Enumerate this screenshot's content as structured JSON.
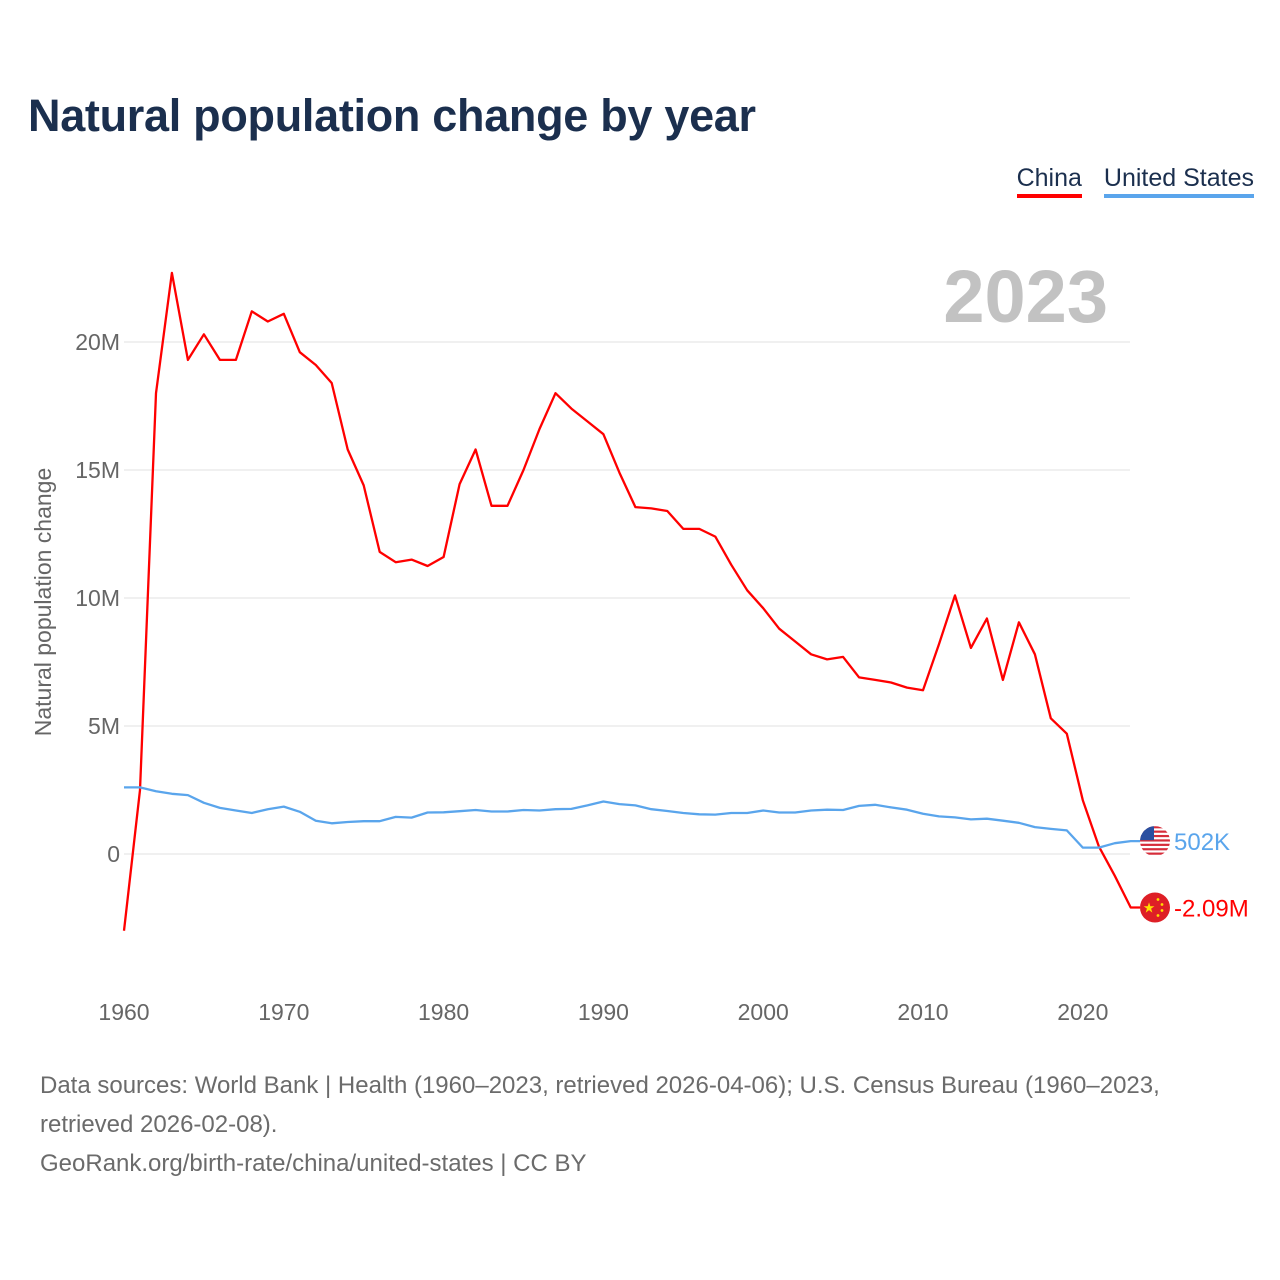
{
  "title": "Natural population change by year",
  "legend": [
    {
      "label": "China",
      "color": "#ff0000"
    },
    {
      "label": "United States",
      "color": "#5aa5ec"
    }
  ],
  "footer": {
    "sources": "Data sources: World Bank | Health (1960–2023, retrieved 2026-04-06); U.S. Census Bureau (1960–2023, retrieved 2026-02-08).",
    "link": "GeoRank.org/birth-rate/china/united-states | CC BY"
  },
  "chart_data": {
    "type": "line",
    "title": "Natural population change by year",
    "ylabel": "Natural population change",
    "xlabel": "",
    "year_label": "2023",
    "xlim": [
      1960,
      2023
    ],
    "ylim": [
      -4000000,
      23500000
    ],
    "x_ticks": [
      1960,
      1970,
      1980,
      1990,
      2000,
      2010,
      2020
    ],
    "y_ticks": [
      {
        "value": 0,
        "label": "0"
      },
      {
        "value": 5000000,
        "label": "5M"
      },
      {
        "value": 10000000,
        "label": "10M"
      },
      {
        "value": 15000000,
        "label": "15M"
      },
      {
        "value": 20000000,
        "label": "20M"
      }
    ],
    "grid": true,
    "legend_position": "top-right",
    "x": [
      1960,
      1961,
      1962,
      1963,
      1964,
      1965,
      1966,
      1967,
      1968,
      1969,
      1970,
      1971,
      1972,
      1973,
      1974,
      1975,
      1976,
      1977,
      1978,
      1979,
      1980,
      1981,
      1982,
      1983,
      1984,
      1985,
      1986,
      1987,
      1988,
      1989,
      1990,
      1991,
      1992,
      1993,
      1994,
      1995,
      1996,
      1997,
      1998,
      1999,
      2000,
      2001,
      2002,
      2003,
      2004,
      2005,
      2006,
      2007,
      2008,
      2009,
      2010,
      2011,
      2012,
      2013,
      2014,
      2015,
      2016,
      2017,
      2018,
      2019,
      2020,
      2021,
      2022,
      2023
    ],
    "series": [
      {
        "name": "China",
        "color": "#ff0000",
        "end_label": "-2.09M",
        "flag": "china-flag",
        "values": [
          -3.0,
          2.5,
          18.0,
          22.7,
          19.3,
          20.3,
          19.3,
          19.3,
          21.2,
          20.8,
          21.1,
          19.6,
          19.1,
          18.4,
          15.8,
          14.4,
          11.8,
          11.4,
          11.5,
          11.25,
          11.6,
          14.45,
          15.8,
          13.6,
          13.6,
          15.0,
          16.6,
          18.0,
          17.4,
          16.9,
          16.4,
          14.9,
          13.55,
          13.5,
          13.4,
          12.7,
          12.7,
          12.4,
          11.3,
          10.3,
          9.6,
          8.8,
          8.3,
          7.8,
          7.6,
          7.7,
          6.9,
          6.8,
          6.7,
          6.5,
          6.4,
          8.2,
          10.1,
          8.05,
          9.2,
          6.8,
          9.05,
          7.8,
          5.3,
          4.7,
          2.1,
          0.3,
          -0.85,
          -2.09
        ],
        "unit": "millions"
      },
      {
        "name": "United States",
        "color": "#5aa5ec",
        "end_label": "502K",
        "flag": "us-flag",
        "values": [
          2.6,
          2.6,
          2.45,
          2.35,
          2.3,
          2.0,
          1.8,
          1.7,
          1.6,
          1.75,
          1.85,
          1.65,
          1.3,
          1.2,
          1.25,
          1.28,
          1.28,
          1.45,
          1.42,
          1.62,
          1.63,
          1.67,
          1.72,
          1.66,
          1.66,
          1.72,
          1.7,
          1.75,
          1.76,
          1.9,
          2.05,
          1.95,
          1.9,
          1.75,
          1.68,
          1.6,
          1.55,
          1.54,
          1.6,
          1.6,
          1.7,
          1.62,
          1.62,
          1.7,
          1.73,
          1.72,
          1.88,
          1.92,
          1.82,
          1.73,
          1.57,
          1.47,
          1.43,
          1.35,
          1.38,
          1.3,
          1.22,
          1.05,
          0.98,
          0.92,
          0.25,
          0.25,
          0.42,
          0.502
        ],
        "unit": "millions"
      }
    ]
  }
}
